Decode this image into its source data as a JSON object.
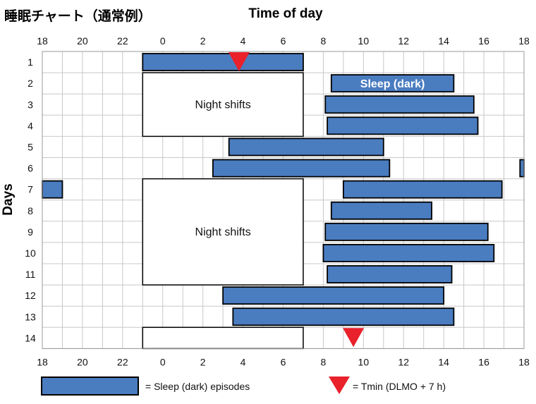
{
  "title": "睡眠チャート（通常例）",
  "chart_data": {
    "type": "bar",
    "subtype": "actogram",
    "xlabel": "Time of day",
    "ylabel": "Days",
    "x_tick_labels": [
      "18",
      "20",
      "22",
      "0",
      "2",
      "4",
      "6",
      "8",
      "10",
      "12",
      "14",
      "16",
      "18"
    ],
    "x_range_hours_since_18": [
      0,
      24
    ],
    "days": [
      1,
      2,
      3,
      4,
      5,
      6,
      7,
      8,
      9,
      10,
      11,
      12,
      13,
      14
    ],
    "grid": true,
    "colors": {
      "sleep": "#4a7cc0",
      "tmin": "#e8212b",
      "grid": "#c8c8c8"
    },
    "sleep_episodes": [
      {
        "day": 1,
        "start": 23.0,
        "end": 7.0
      },
      {
        "day": 2,
        "start": 8.4,
        "end": 14.5
      },
      {
        "day": 3,
        "start": 8.1,
        "end": 15.5
      },
      {
        "day": 4,
        "start": 8.2,
        "end": 15.7
      },
      {
        "day": 5,
        "start": 3.3,
        "end": 11.0
      },
      {
        "day": 6,
        "start": 2.5,
        "end": 11.3
      },
      {
        "day": 6,
        "start": 17.8,
        "end": 18.0
      },
      {
        "day": 7,
        "start": 18.0,
        "end": 19.0
      },
      {
        "day": 7,
        "start": 9.0,
        "end": 16.9
      },
      {
        "day": 8,
        "start": 8.4,
        "end": 13.4
      },
      {
        "day": 9,
        "start": 8.1,
        "end": 16.2
      },
      {
        "day": 10,
        "start": 8.0,
        "end": 16.5
      },
      {
        "day": 11,
        "start": 8.2,
        "end": 14.4
      },
      {
        "day": 12,
        "start": 3.0,
        "end": 14.0
      },
      {
        "day": 13,
        "start": 3.5,
        "end": 14.5
      }
    ],
    "night_shifts": [
      {
        "label": "Night shifts",
        "start": 23.0,
        "end": 7.0,
        "day_from": 2,
        "day_to": 4
      },
      {
        "label": "Night shifts",
        "start": 23.0,
        "end": 7.0,
        "day_from": 7,
        "day_to": 11
      },
      {
        "label": "",
        "start": 23.0,
        "end": 7.0,
        "day_from": 14,
        "day_to": 14
      }
    ],
    "annotations": [
      {
        "text": "Sleep (dark)",
        "day": 2
      }
    ],
    "tmin_markers": [
      {
        "day": 1,
        "time": 3.8
      },
      {
        "day": 14,
        "time": 9.5
      }
    ],
    "legend": [
      {
        "marker": "bar",
        "label": "= Sleep (dark) episodes"
      },
      {
        "marker": "triangle",
        "label": "= Tmin (DLMO + 7 h)"
      }
    ]
  }
}
